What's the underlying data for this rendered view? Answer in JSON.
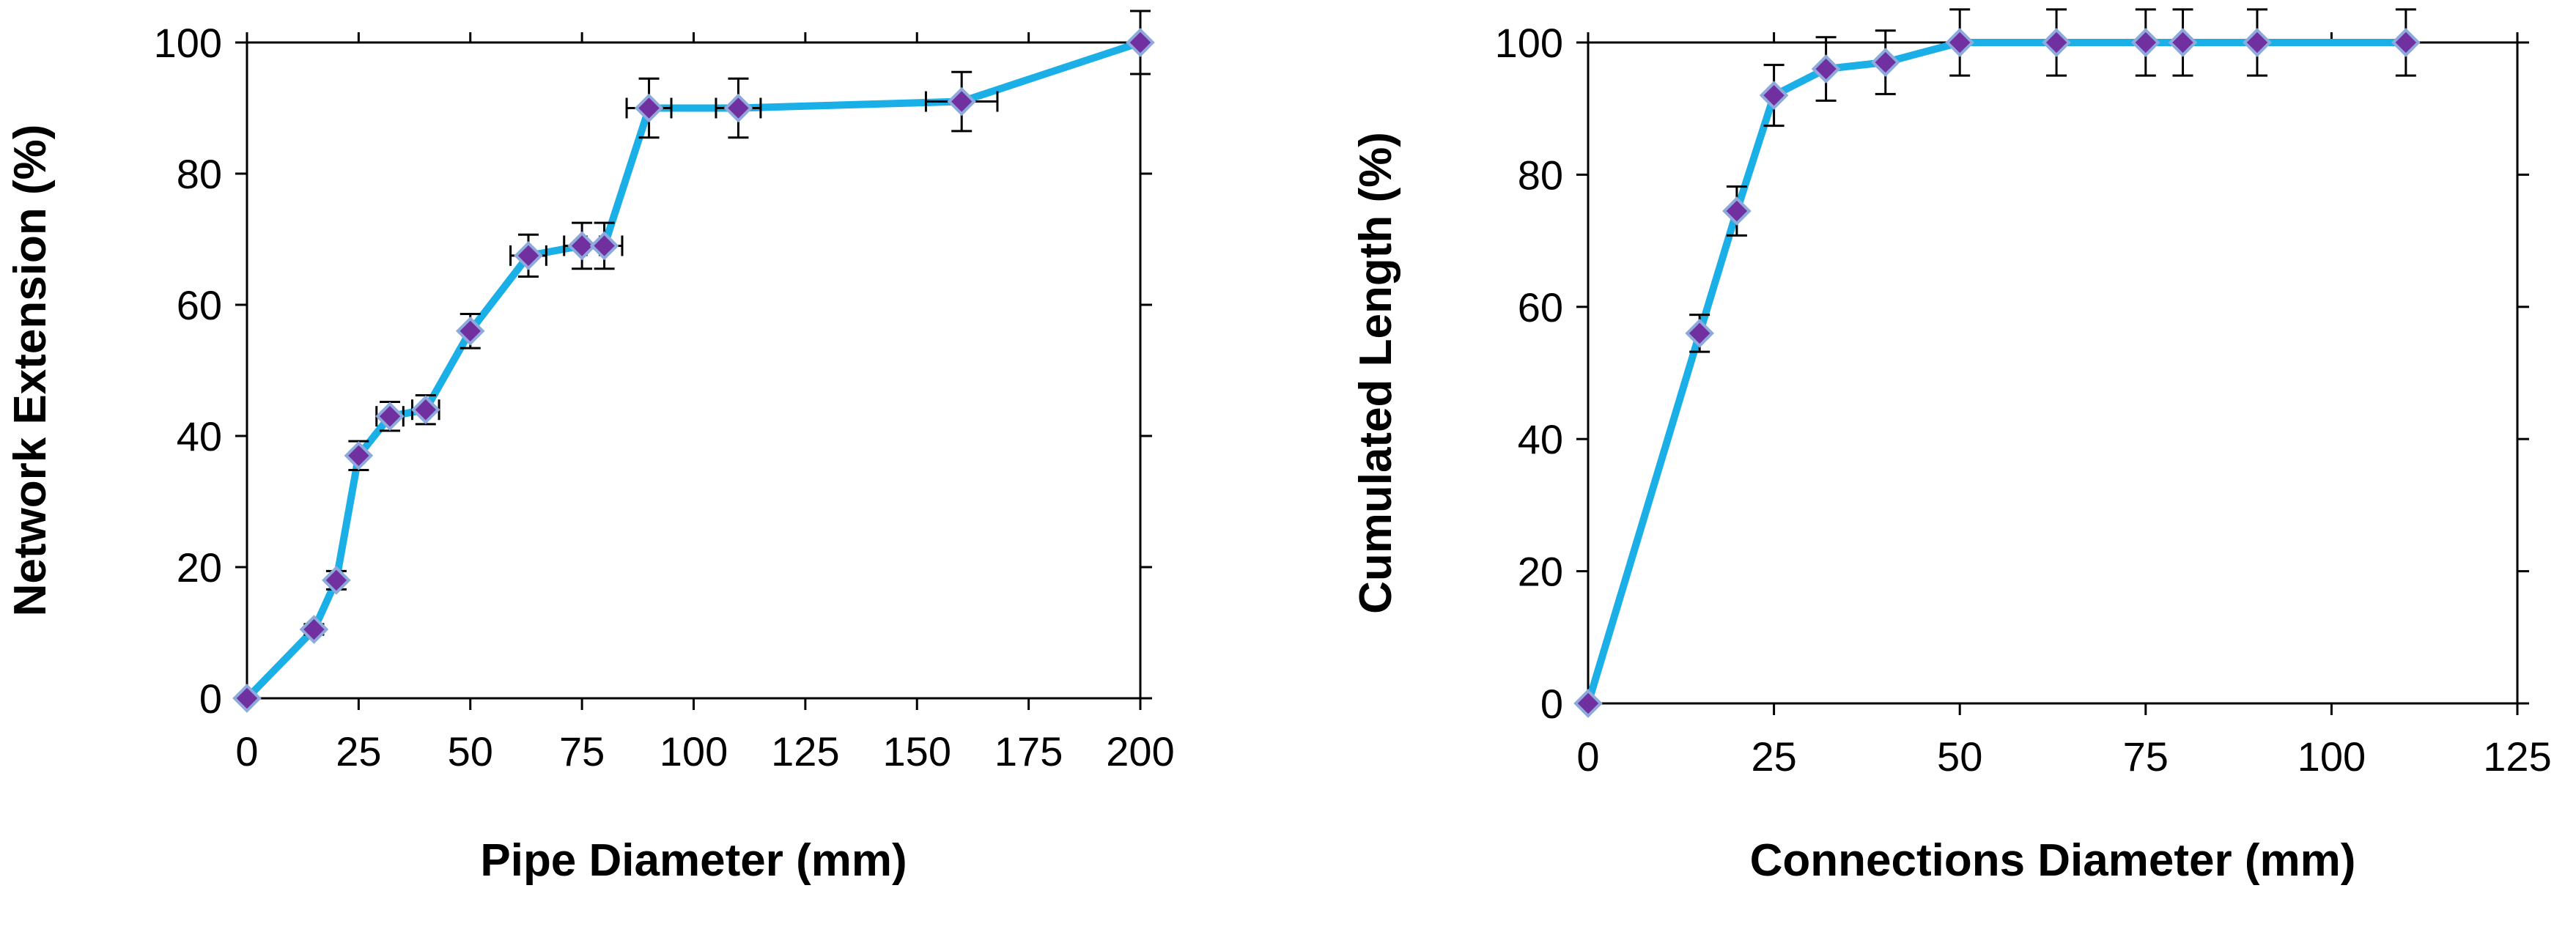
{
  "colors": {
    "line": "#1AAFE6",
    "marker_fill": "#7030A0",
    "marker_stroke": "#8EA9DB",
    "axis": "#000000",
    "error_bar": "#000000"
  },
  "chart_data": [
    {
      "type": "line",
      "title": "",
      "xlabel": "Pipe Diameter (mm)",
      "ylabel": "Network Extension (%)",
      "xlim": [
        0,
        200
      ],
      "ylim": [
        0,
        100
      ],
      "x_ticks": [
        0,
        25,
        50,
        75,
        100,
        125,
        150,
        175,
        200
      ],
      "x_tick_labels": [
        "0",
        "25",
        "50",
        "75",
        "100",
        "125",
        "150",
        "175",
        "200"
      ],
      "y_ticks": [
        0,
        20,
        40,
        60,
        80,
        100
      ],
      "y_tick_labels": [
        "0",
        "20",
        "40",
        "60",
        "80",
        "100"
      ],
      "grid": false,
      "legend": "none",
      "series": [
        {
          "name": "Network Extension",
          "x": [
            0,
            15,
            20,
            25,
            32,
            40,
            50,
            63,
            75,
            80,
            90,
            110,
            160,
            200
          ],
          "y": [
            0,
            10.5,
            18,
            37,
            43,
            44,
            56,
            67.5,
            69,
            69,
            90,
            90,
            91,
            100
          ],
          "x_err": [
            0,
            0,
            0,
            0,
            3,
            3,
            0,
            4,
            4,
            4,
            5,
            5,
            8,
            0
          ],
          "y_err": [
            0,
            0.8,
            1.4,
            2.2,
            2.2,
            2.2,
            2.6,
            3.2,
            3.5,
            3.5,
            4.5,
            4.5,
            4.5,
            4.8
          ]
        }
      ]
    },
    {
      "type": "line",
      "title": "",
      "xlabel": "Connections Diameter (mm)",
      "ylabel": "Cumulated Length (%)",
      "xlim": [
        0,
        125
      ],
      "ylim": [
        0,
        100
      ],
      "x_ticks": [
        0,
        25,
        50,
        75,
        100,
        125
      ],
      "x_tick_labels": [
        "0",
        "25",
        "50",
        "75",
        "100",
        "125"
      ],
      "y_ticks": [
        0,
        20,
        40,
        60,
        80,
        100
      ],
      "y_tick_labels": [
        "0",
        "20",
        "40",
        "60",
        "80",
        "100"
      ],
      "grid": false,
      "legend": "none",
      "series": [
        {
          "name": "Cumulated Length",
          "x": [
            0,
            15,
            20,
            25,
            32,
            40,
            50,
            63,
            75,
            80,
            90,
            110
          ],
          "y": [
            0,
            56,
            74.5,
            92,
            96,
            97,
            100,
            100,
            100,
            100,
            100,
            100
          ],
          "x_err": [
            0,
            0,
            0,
            0,
            0,
            0,
            0,
            0,
            0,
            0,
            0,
            0
          ],
          "y_err": [
            0,
            2.8,
            3.7,
            4.6,
            4.8,
            4.8,
            5,
            5,
            5,
            5,
            5,
            5
          ]
        }
      ]
    }
  ]
}
